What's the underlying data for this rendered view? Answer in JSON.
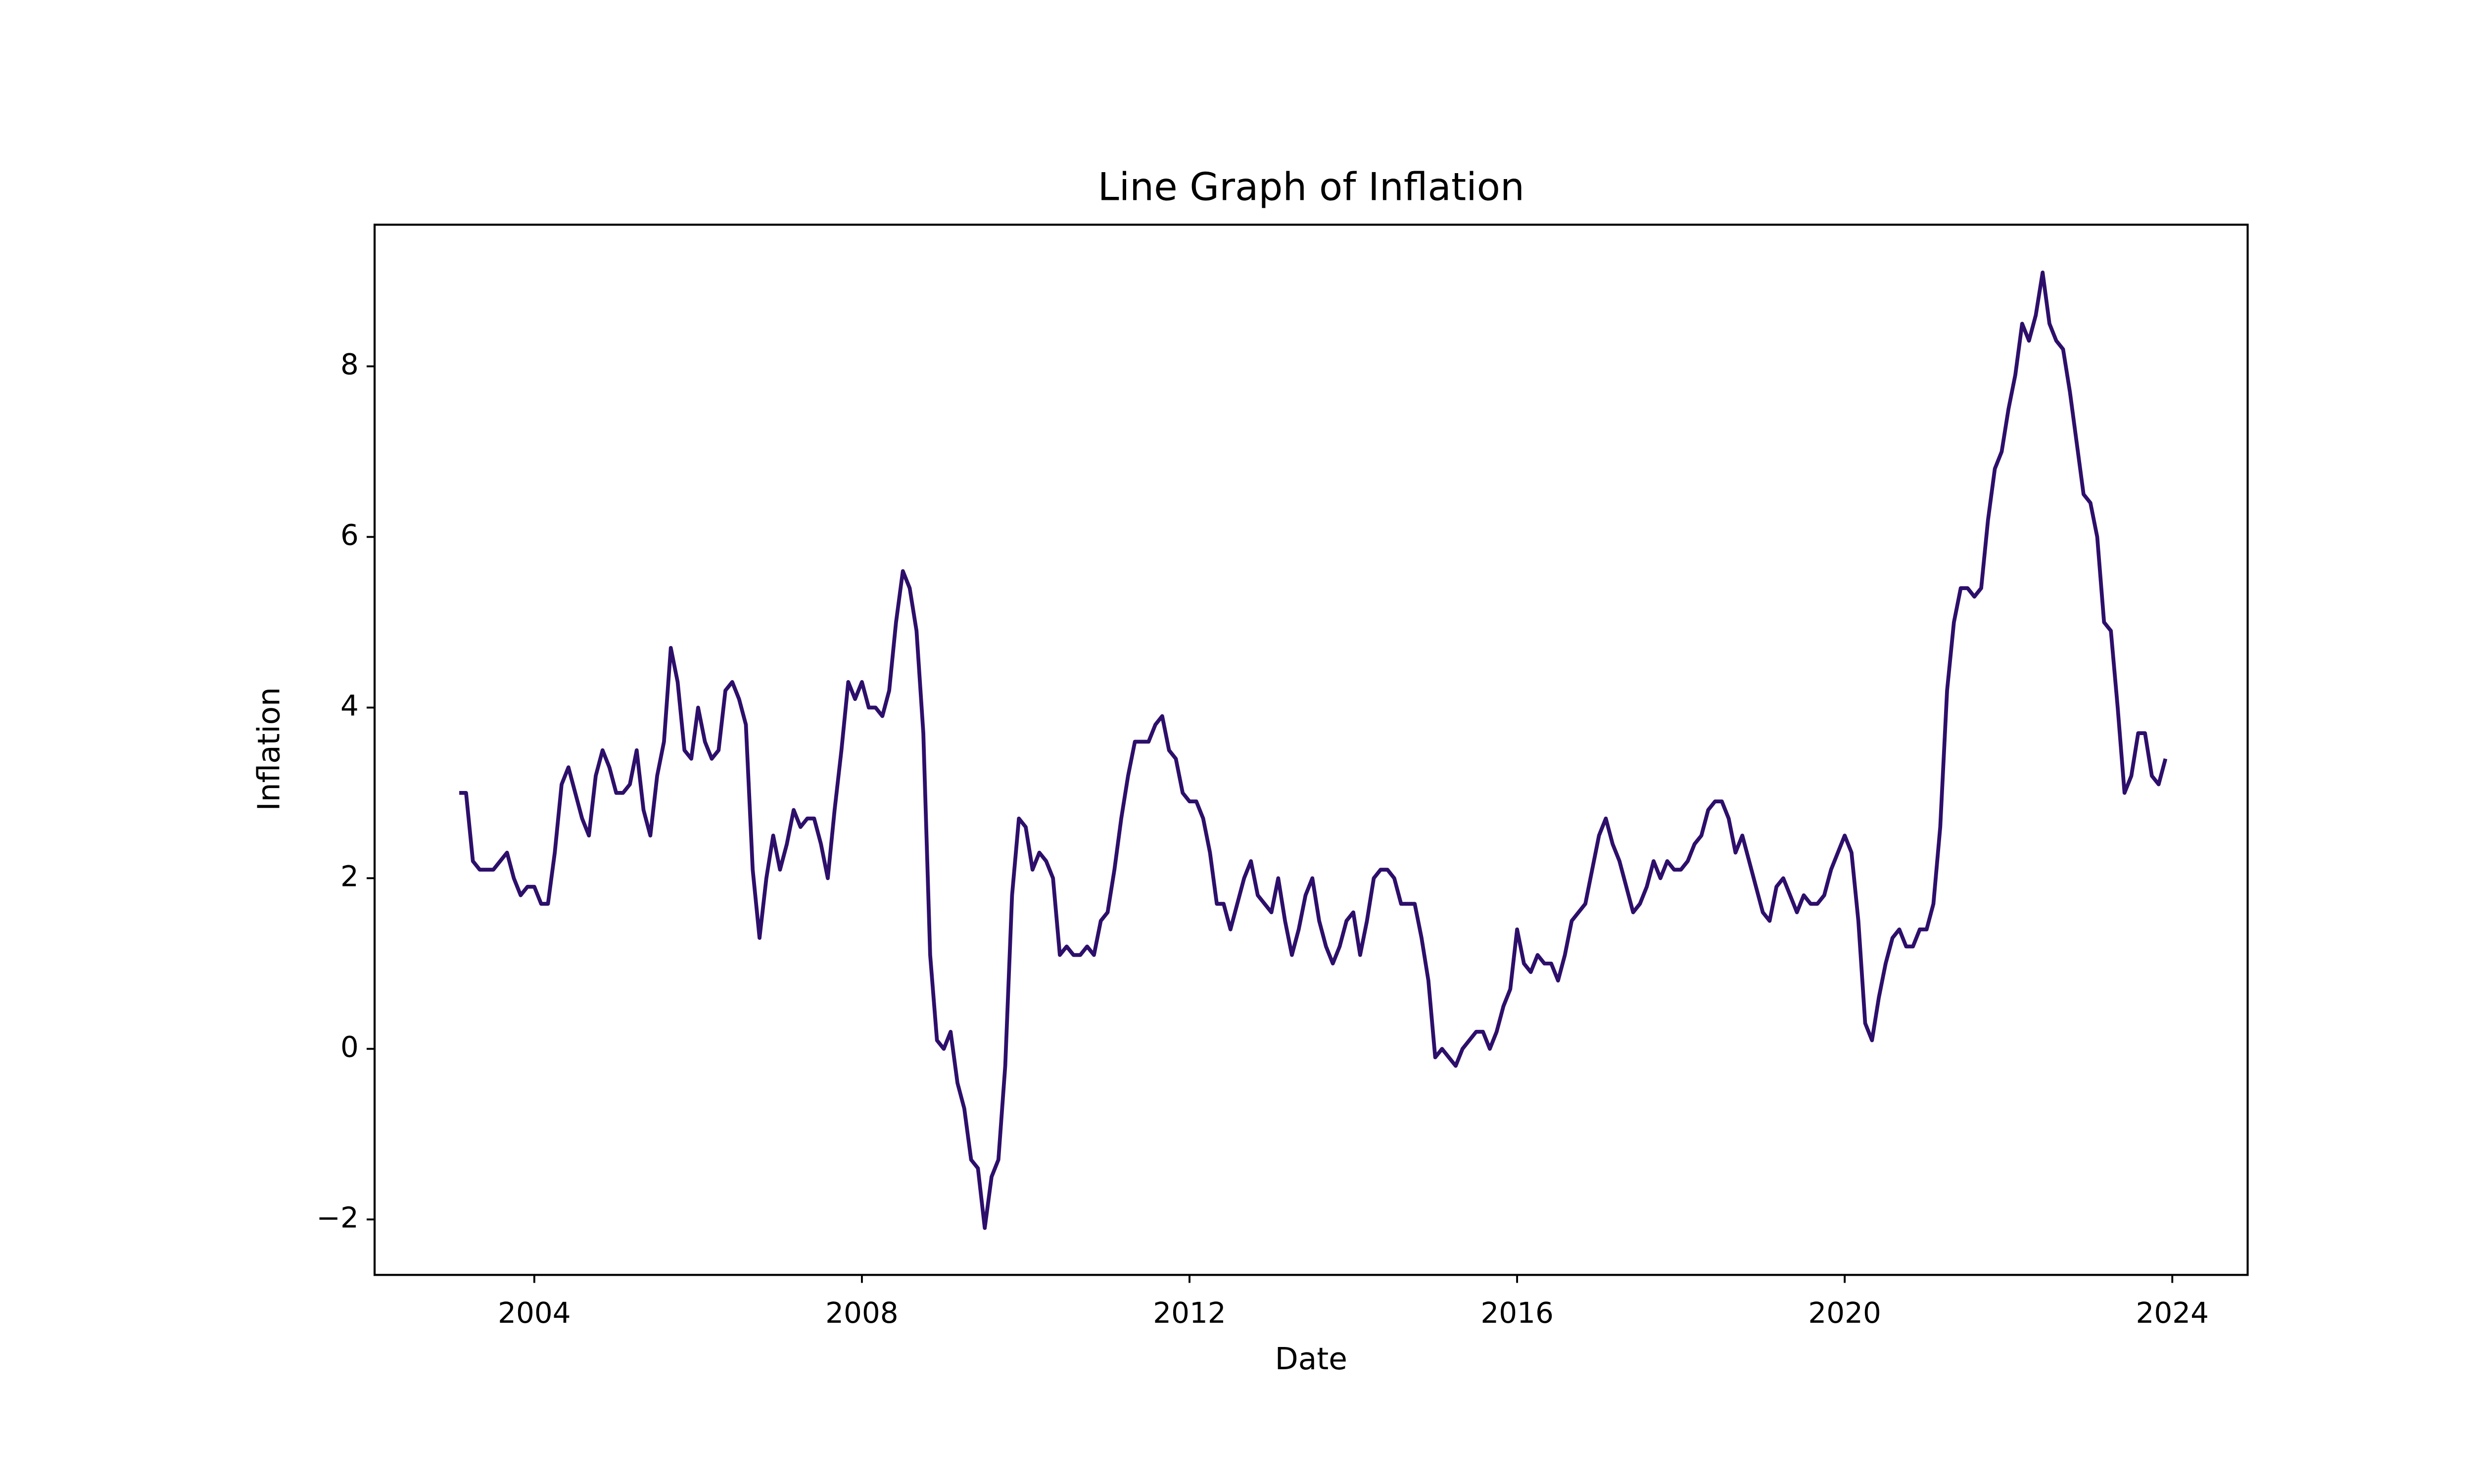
{
  "chart_data": {
    "type": "line",
    "title": "Line Graph of Inflation",
    "x_label": "Date",
    "y_label": "Inflation",
    "x": [
      "2003-02",
      "2003-03",
      "2003-04",
      "2003-05",
      "2003-06",
      "2003-07",
      "2003-08",
      "2003-09",
      "2003-10",
      "2003-11",
      "2003-12",
      "2004-01",
      "2004-02",
      "2004-03",
      "2004-04",
      "2004-05",
      "2004-06",
      "2004-07",
      "2004-08",
      "2004-09",
      "2004-10",
      "2004-11",
      "2004-12",
      "2005-01",
      "2005-02",
      "2005-03",
      "2005-04",
      "2005-05",
      "2005-06",
      "2005-07",
      "2005-08",
      "2005-09",
      "2005-10",
      "2005-11",
      "2005-12",
      "2006-01",
      "2006-02",
      "2006-03",
      "2006-04",
      "2006-05",
      "2006-06",
      "2006-07",
      "2006-08",
      "2006-09",
      "2006-10",
      "2006-11",
      "2006-12",
      "2007-01",
      "2007-02",
      "2007-03",
      "2007-04",
      "2007-05",
      "2007-06",
      "2007-07",
      "2007-08",
      "2007-09",
      "2007-10",
      "2007-11",
      "2007-12",
      "2008-01",
      "2008-02",
      "2008-03",
      "2008-04",
      "2008-05",
      "2008-06",
      "2008-07",
      "2008-08",
      "2008-09",
      "2008-10",
      "2008-11",
      "2008-12",
      "2009-01",
      "2009-02",
      "2009-03",
      "2009-04",
      "2009-05",
      "2009-06",
      "2009-07",
      "2009-08",
      "2009-09",
      "2009-10",
      "2009-11",
      "2009-12",
      "2010-01",
      "2010-02",
      "2010-03",
      "2010-04",
      "2010-05",
      "2010-06",
      "2010-07",
      "2010-08",
      "2010-09",
      "2010-10",
      "2010-11",
      "2010-12",
      "2011-01",
      "2011-02",
      "2011-03",
      "2011-04",
      "2011-05",
      "2011-06",
      "2011-07",
      "2011-08",
      "2011-09",
      "2011-10",
      "2011-11",
      "2011-12",
      "2012-01",
      "2012-02",
      "2012-03",
      "2012-04",
      "2012-05",
      "2012-06",
      "2012-07",
      "2012-08",
      "2012-09",
      "2012-10",
      "2012-11",
      "2012-12",
      "2013-01",
      "2013-02",
      "2013-03",
      "2013-04",
      "2013-05",
      "2013-06",
      "2013-07",
      "2013-08",
      "2013-09",
      "2013-10",
      "2013-11",
      "2013-12",
      "2014-01",
      "2014-02",
      "2014-03",
      "2014-04",
      "2014-05",
      "2014-06",
      "2014-07",
      "2014-08",
      "2014-09",
      "2014-10",
      "2014-11",
      "2014-12",
      "2015-01",
      "2015-02",
      "2015-03",
      "2015-04",
      "2015-05",
      "2015-06",
      "2015-07",
      "2015-08",
      "2015-09",
      "2015-10",
      "2015-11",
      "2015-12",
      "2016-01",
      "2016-02",
      "2016-03",
      "2016-04",
      "2016-05",
      "2016-06",
      "2016-07",
      "2016-08",
      "2016-09",
      "2016-10",
      "2016-11",
      "2016-12",
      "2017-01",
      "2017-02",
      "2017-03",
      "2017-04",
      "2017-05",
      "2017-06",
      "2017-07",
      "2017-08",
      "2017-09",
      "2017-10",
      "2017-11",
      "2017-12",
      "2018-01",
      "2018-02",
      "2018-03",
      "2018-04",
      "2018-05",
      "2018-06",
      "2018-07",
      "2018-08",
      "2018-09",
      "2018-10",
      "2018-11",
      "2018-12",
      "2019-01",
      "2019-02",
      "2019-03",
      "2019-04",
      "2019-05",
      "2019-06",
      "2019-07",
      "2019-08",
      "2019-09",
      "2019-10",
      "2019-11",
      "2019-12",
      "2020-01",
      "2020-02",
      "2020-03",
      "2020-04",
      "2020-05",
      "2020-06",
      "2020-07",
      "2020-08",
      "2020-09",
      "2020-10",
      "2020-11",
      "2020-12",
      "2021-01",
      "2021-02",
      "2021-03",
      "2021-04",
      "2021-05",
      "2021-06",
      "2021-07",
      "2021-08",
      "2021-09",
      "2021-10",
      "2021-11",
      "2021-12",
      "2022-01",
      "2022-02",
      "2022-03",
      "2022-04",
      "2022-05",
      "2022-06",
      "2022-07",
      "2022-08",
      "2022-09",
      "2022-10",
      "2022-11",
      "2022-12",
      "2023-01",
      "2023-02",
      "2023-03",
      "2023-04",
      "2023-05",
      "2023-06",
      "2023-07",
      "2023-08",
      "2023-09",
      "2023-10",
      "2023-11",
      "2023-12"
    ],
    "series": [
      {
        "name": "Inflation",
        "color": "#2d0f6b",
        "values": [
          3.0,
          3.0,
          2.2,
          2.1,
          2.1,
          2.1,
          2.2,
          2.3,
          2.0,
          1.8,
          1.9,
          1.9,
          1.7,
          1.7,
          2.3,
          3.1,
          3.3,
          3.0,
          2.7,
          2.5,
          3.2,
          3.5,
          3.3,
          3.0,
          3.0,
          3.1,
          3.5,
          2.8,
          2.5,
          3.2,
          3.6,
          4.7,
          4.3,
          3.5,
          3.4,
          4.0,
          3.6,
          3.4,
          3.5,
          4.2,
          4.3,
          4.1,
          3.8,
          2.1,
          1.3,
          2.0,
          2.5,
          2.1,
          2.4,
          2.8,
          2.6,
          2.7,
          2.7,
          2.4,
          2.0,
          2.8,
          3.5,
          4.3,
          4.1,
          4.3,
          4.0,
          4.0,
          3.9,
          4.2,
          5.0,
          5.6,
          5.4,
          4.9,
          3.7,
          1.1,
          0.1,
          0.0,
          0.2,
          -0.4,
          -0.7,
          -1.3,
          -1.4,
          -2.1,
          -1.5,
          -1.3,
          -0.2,
          1.8,
          2.7,
          2.6,
          2.1,
          2.3,
          2.2,
          2.0,
          1.1,
          1.2,
          1.1,
          1.1,
          1.2,
          1.1,
          1.5,
          1.6,
          2.1,
          2.7,
          3.2,
          3.6,
          3.6,
          3.6,
          3.8,
          3.9,
          3.5,
          3.4,
          3.0,
          2.9,
          2.9,
          2.7,
          2.3,
          1.7,
          1.7,
          1.4,
          1.7,
          2.0,
          2.2,
          1.8,
          1.7,
          1.6,
          2.0,
          1.5,
          1.1,
          1.4,
          1.8,
          2.0,
          1.5,
          1.2,
          1.0,
          1.2,
          1.5,
          1.6,
          1.1,
          1.5,
          2.0,
          2.1,
          2.1,
          2.0,
          1.7,
          1.7,
          1.7,
          1.3,
          0.8,
          -0.1,
          0.0,
          -0.1,
          -0.2,
          0.0,
          0.1,
          0.2,
          0.2,
          0.0,
          0.2,
          0.5,
          0.7,
          1.4,
          1.0,
          0.9,
          1.1,
          1.0,
          1.0,
          0.8,
          1.1,
          1.5,
          1.6,
          1.7,
          2.1,
          2.5,
          2.7,
          2.4,
          2.2,
          1.9,
          1.6,
          1.7,
          1.9,
          2.2,
          2.0,
          2.2,
          2.1,
          2.1,
          2.2,
          2.4,
          2.5,
          2.8,
          2.9,
          2.9,
          2.7,
          2.3,
          2.5,
          2.2,
          1.9,
          1.6,
          1.5,
          1.9,
          2.0,
          1.8,
          1.6,
          1.8,
          1.7,
          1.7,
          1.8,
          2.1,
          2.3,
          2.5,
          2.3,
          1.5,
          0.3,
          0.1,
          0.6,
          1.0,
          1.3,
          1.4,
          1.2,
          1.2,
          1.4,
          1.4,
          1.7,
          2.6,
          4.2,
          5.0,
          5.4,
          5.4,
          5.3,
          5.4,
          6.2,
          6.8,
          7.0,
          7.5,
          7.9,
          8.5,
          8.3,
          8.6,
          9.1,
          8.5,
          8.3,
          8.2,
          7.7,
          7.1,
          6.5,
          6.4,
          6.0,
          5.0,
          4.9,
          4.0,
          3.0,
          3.2,
          3.7,
          3.7,
          3.2,
          3.1,
          3.4
        ]
      }
    ],
    "xlim": [
      2002.05,
      2024.92
    ],
    "xticks": [
      2004,
      2008,
      2012,
      2016,
      2020,
      2024
    ],
    "ylim": [
      -2.65,
      9.66
    ],
    "yticks": [
      {
        "value": -2,
        "label": "−2"
      },
      0,
      2,
      4,
      6,
      8
    ],
    "grid": false
  }
}
